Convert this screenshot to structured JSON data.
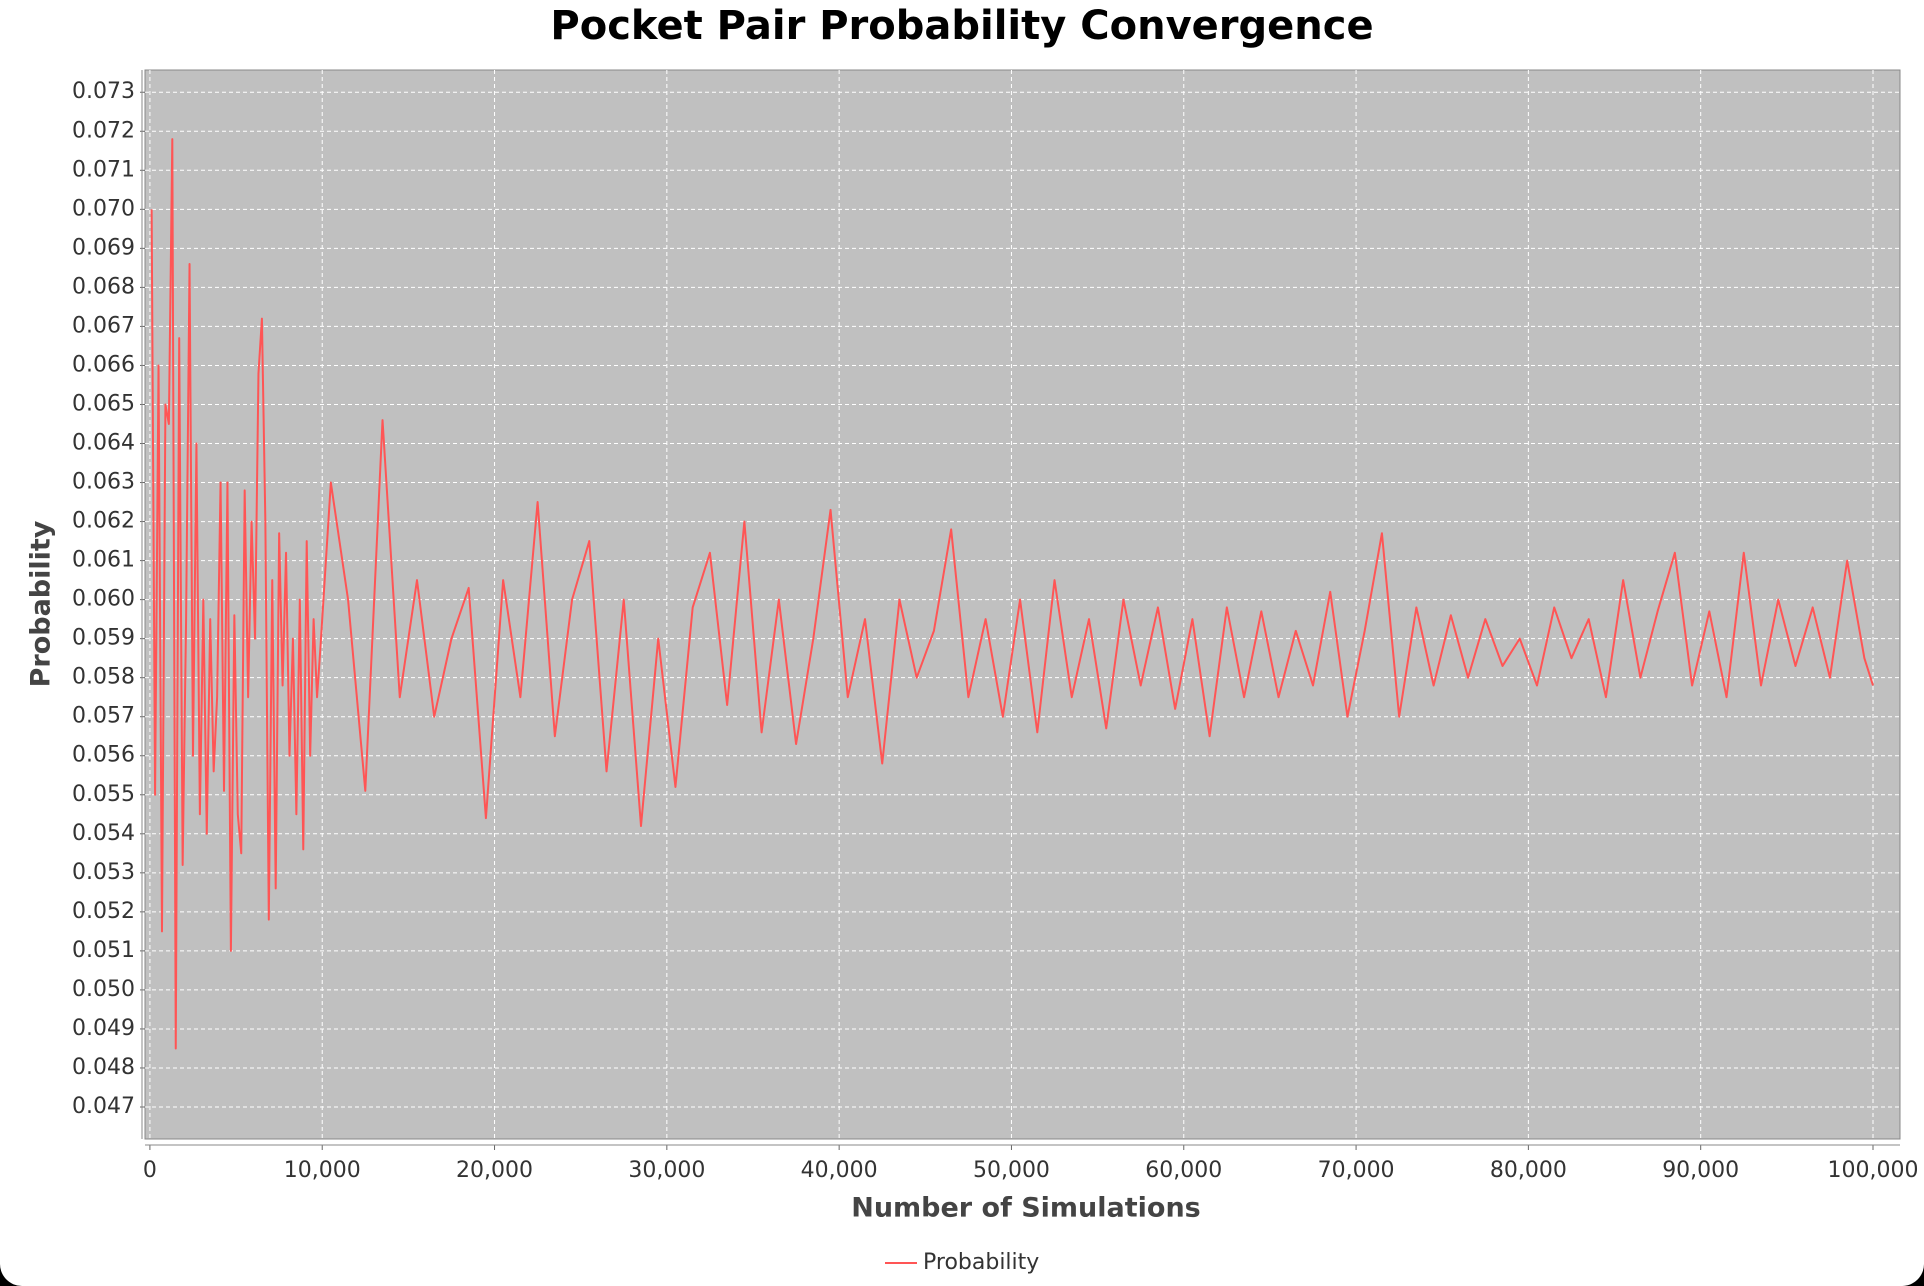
{
  "chart_data": {
    "type": "line",
    "title": "Pocket Pair Probability Convergence",
    "x_label": "Number of Simulations",
    "y_label": "Probability",
    "grid": true,
    "legend": "bottom",
    "xlim": [
      -285,
      101567
    ],
    "ylim": [
      0.04618,
      0.07357
    ],
    "xticks": [
      0,
      {
        "value": 10000,
        "label": "10,000"
      },
      {
        "value": 20000,
        "label": "20,000"
      },
      {
        "value": 30000,
        "label": "30,000"
      },
      {
        "value": 40000,
        "label": "40,000"
      },
      {
        "value": 50000,
        "label": "50,000"
      },
      {
        "value": 60000,
        "label": "60,000"
      },
      {
        "value": 70000,
        "label": "70,000"
      },
      {
        "value": 80000,
        "label": "80,000"
      },
      {
        "value": 90000,
        "label": "90,000"
      },
      {
        "value": 100000,
        "label": "100,000"
      }
    ],
    "yticks": [
      0.047,
      0.048,
      0.049,
      {
        "value": 0.05,
        "label": "0.050"
      },
      0.051,
      0.052,
      0.053,
      0.054,
      0.055,
      0.056,
      0.057,
      0.058,
      0.059,
      {
        "value": 0.06,
        "label": "0.060"
      },
      0.061,
      0.062,
      0.063,
      0.064,
      0.065,
      0.066,
      0.067,
      0.068,
      0.069,
      {
        "value": 0.07,
        "label": "0.070"
      },
      0.071,
      0.072,
      0.073
    ],
    "x": [
      100,
      300,
      500,
      700,
      900,
      1100,
      1300,
      1500,
      1700,
      1900,
      2100,
      2300,
      2500,
      2700,
      2900,
      3100,
      3300,
      3500,
      3700,
      3900,
      4100,
      4300,
      4500,
      4700,
      4900,
      5100,
      5300,
      5500,
      5700,
      5900,
      6100,
      6300,
      6500,
      6700,
      6900,
      7100,
      7300,
      7500,
      7700,
      7900,
      8100,
      8300,
      8500,
      8700,
      8900,
      9100,
      9300,
      9500,
      9700,
      9900,
      10500,
      11500,
      12500,
      13500,
      14500,
      15500,
      16500,
      17500,
      18500,
      19500,
      20500,
      21500,
      22500,
      23500,
      24500,
      25500,
      26500,
      27500,
      28500,
      29500,
      30500,
      31500,
      32500,
      33500,
      34500,
      35500,
      36500,
      37500,
      38500,
      39500,
      40500,
      41500,
      42500,
      43500,
      44500,
      45500,
      46500,
      47500,
      48500,
      49500,
      50500,
      51500,
      52500,
      53500,
      54500,
      55500,
      56500,
      57500,
      58500,
      59500,
      60500,
      61500,
      62500,
      63500,
      64500,
      65500,
      66500,
      67500,
      68500,
      69500,
      70500,
      71500,
      72500,
      73500,
      74500,
      75500,
      76500,
      77500,
      78500,
      79500,
      80500,
      81500,
      82500,
      83500,
      84500,
      85500,
      86500,
      87500,
      88500,
      89500,
      90500,
      91500,
      92500,
      93500,
      94500,
      95500,
      96500,
      97500,
      98500,
      99500,
      100000
    ],
    "series": [
      {
        "name": "Probability",
        "color": "#ff5555",
        "values": [
          0.07,
          0.055,
          0.066,
          0.0515,
          0.065,
          0.0645,
          0.0718,
          0.0485,
          0.0667,
          0.0532,
          0.0595,
          0.0686,
          0.056,
          0.064,
          0.0545,
          0.06,
          0.054,
          0.0595,
          0.0556,
          0.0575,
          0.063,
          0.0551,
          0.063,
          0.051,
          0.0596,
          0.0545,
          0.0535,
          0.0628,
          0.0575,
          0.062,
          0.059,
          0.0658,
          0.0672,
          0.062,
          0.0518,
          0.0605,
          0.0526,
          0.0617,
          0.0578,
          0.0612,
          0.056,
          0.059,
          0.0545,
          0.06,
          0.0536,
          0.0615,
          0.056,
          0.0595,
          0.0575,
          0.0588,
          0.063,
          0.06,
          0.0551,
          0.0646,
          0.0575,
          0.0605,
          0.057,
          0.059,
          0.0603,
          0.0544,
          0.0605,
          0.0575,
          0.0625,
          0.0565,
          0.06,
          0.0615,
          0.0556,
          0.06,
          0.0542,
          0.059,
          0.0552,
          0.0598,
          0.0612,
          0.0573,
          0.062,
          0.0566,
          0.06,
          0.0563,
          0.059,
          0.0623,
          0.0575,
          0.0595,
          0.0558,
          0.06,
          0.058,
          0.0592,
          0.0618,
          0.0575,
          0.0595,
          0.057,
          0.06,
          0.0566,
          0.0605,
          0.0575,
          0.0595,
          0.0567,
          0.06,
          0.0578,
          0.0598,
          0.0572,
          0.0595,
          0.0565,
          0.0598,
          0.0575,
          0.0597,
          0.0575,
          0.0592,
          0.0578,
          0.0602,
          0.057,
          0.0592,
          0.0617,
          0.057,
          0.0598,
          0.0578,
          0.0596,
          0.058,
          0.0595,
          0.0583,
          0.059,
          0.0578,
          0.0598,
          0.0585,
          0.0595,
          0.0575,
          0.0605,
          0.058,
          0.0597,
          0.0612,
          0.0578,
          0.0597,
          0.0575,
          0.0612,
          0.0578,
          0.06,
          0.0583,
          0.0598,
          0.058,
          0.061,
          0.0585,
          0.0578
        ]
      }
    ]
  }
}
